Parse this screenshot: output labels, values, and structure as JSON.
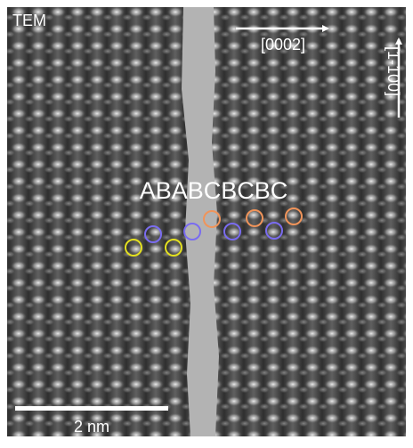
{
  "labels": {
    "tem": "TEM",
    "direction_horizontal": "[0002]",
    "direction_vertical": "[1-100]",
    "stacking": "ABABCBCBC",
    "scale_bar": "2 nm"
  }
}
